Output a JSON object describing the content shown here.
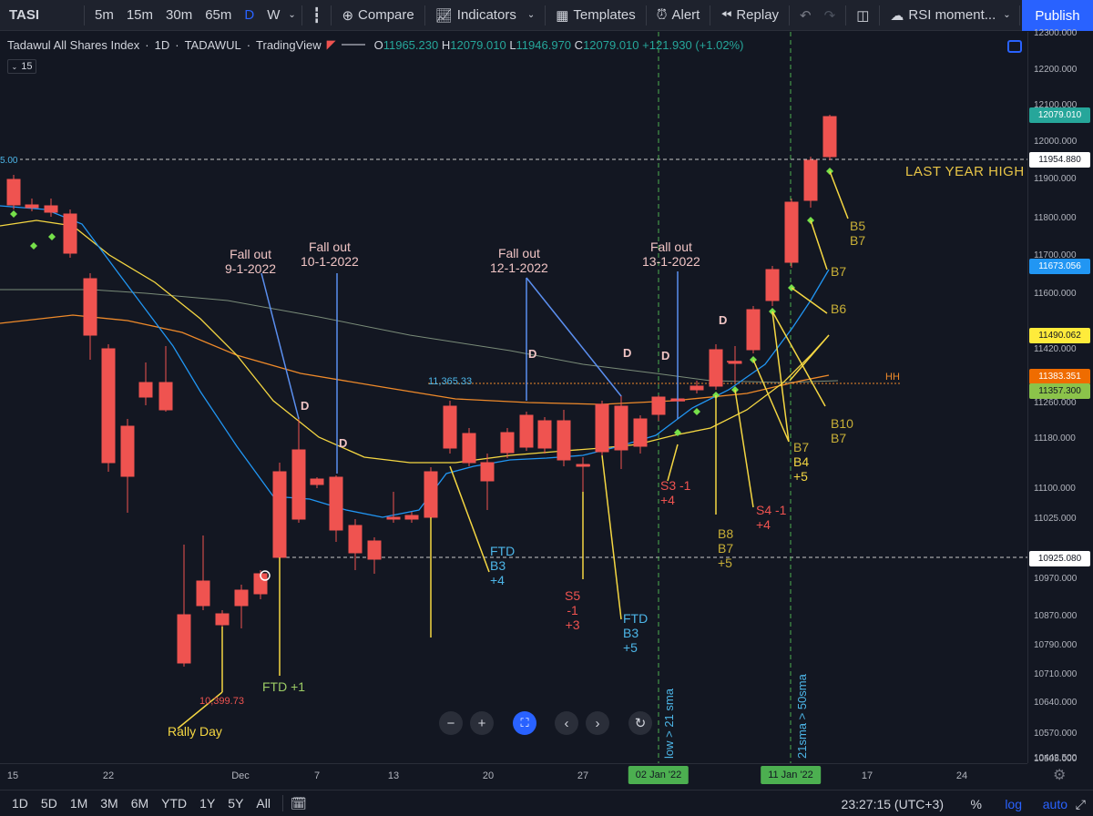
{
  "toolbar": {
    "symbol": "TASI",
    "intervals": [
      "5m",
      "15m",
      "30m",
      "65m",
      "D",
      "W"
    ],
    "compare": "Compare",
    "indicators": "Indicators",
    "templates": "Templates",
    "alert": "Alert",
    "replay": "Replay",
    "study": "RSI moment...",
    "publish": "Publish"
  },
  "legend": {
    "name": "Tadawul All Shares Index",
    "interval": "1D",
    "exchange": "TADAWUL",
    "source": "TradingView",
    "o_label": "O",
    "o": "11965.230",
    "h_label": "H",
    "h": "12079.010",
    "l_label": "L",
    "l": "11946.970",
    "c_label": "C",
    "c": "12079.010",
    "change": "+121.930 (+1.02%)",
    "interval_box": "15"
  },
  "price_axis": {
    "ticks": [
      "12300.000",
      "12200.000",
      "12100.000",
      "12000.000",
      "11900.000",
      "11800.000",
      "11700.000",
      "11600.000",
      "11420.000",
      "11260.000",
      "11180.000",
      "11100.000",
      "11025.000",
      "10970.000",
      "10870.000",
      "10790.000",
      "10710.000",
      "10640.000",
      "10570.000",
      "10505.000",
      "10442.500"
    ],
    "badges": [
      {
        "label": "12079.010",
        "bg": "#26a69a",
        "fg": "#ffffff"
      },
      {
        "label": "11954.880",
        "bg": "#ffffff",
        "fg": "#131722"
      },
      {
        "label": "11673.056",
        "bg": "#2196f3",
        "fg": "#ffffff"
      },
      {
        "label": "11490.062",
        "bg": "#ffeb3b",
        "fg": "#131722"
      },
      {
        "label": "11383.351",
        "bg": "#ef6c00",
        "fg": "#ffffff"
      },
      {
        "label": "11357.300",
        "bg": "#8bc34a",
        "fg": "#131722"
      },
      {
        "label": "10925.080",
        "bg": "#ffffff",
        "fg": "#131722"
      }
    ]
  },
  "time_axis": {
    "ticks": [
      "15",
      "22",
      "Dec",
      "7",
      "13",
      "20",
      "27",
      "17",
      "24"
    ],
    "badges": [
      "02 Jan '22",
      "11 Jan '22"
    ]
  },
  "annotations": {
    "last_year_high": "LAST YEAR HIGH",
    "hh": "HH",
    "level_11365": "11,365.33",
    "low_label": "10,399.73",
    "rally_day": "Rally Day",
    "ftd1": "FTD +1",
    "fallout_1": [
      "Fall out",
      "9-1-2022"
    ],
    "fallout_2": [
      "Fall out",
      "10-1-2022"
    ],
    "fallout_3": [
      "Fall out",
      "12-1-2022"
    ],
    "fallout_4": [
      "Fall out",
      "13-1-2022"
    ],
    "d": "D",
    "ftd_b3_a": [
      "FTD",
      "B3",
      "+4"
    ],
    "s5": [
      "S5",
      "-1",
      "+3"
    ],
    "ftd_b3_b": [
      "FTD",
      "B3",
      "+5"
    ],
    "s3": [
      "S3  -1",
      "+4"
    ],
    "b8": [
      "B8",
      "B7",
      "+5"
    ],
    "s4": [
      "S4  -1",
      "+4"
    ],
    "b7_b4": [
      "B7",
      "B4",
      "+5"
    ],
    "b10": [
      "B10",
      "B7"
    ],
    "b6": "B6",
    "b7": "B7",
    "b5": [
      "B5",
      "B7"
    ],
    "vline1": "low > 21 sma",
    "vline2": "21sma > 50sma",
    "left_price": "5.00"
  },
  "bottom_bar": {
    "ranges": [
      "1D",
      "5D",
      "1M",
      "3M",
      "6M",
      "YTD",
      "1Y",
      "5Y",
      "All"
    ],
    "clock": "23:27:15 (UTC+3)",
    "percent": "%",
    "log": "log",
    "auto": "auto"
  },
  "colors": {
    "up": "#26a69a",
    "down": "#ef5350",
    "accent": "#2962ff"
  }
}
